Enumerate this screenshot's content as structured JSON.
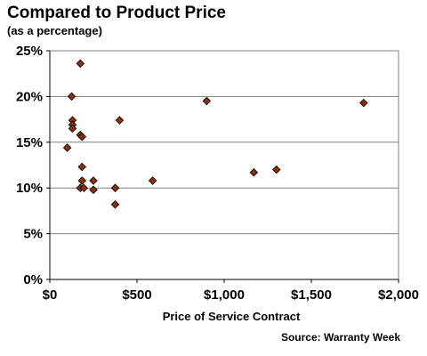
{
  "chart_data": {
    "type": "scatter",
    "title": "Compared to Product Price",
    "subtitle": "(as a percentage)",
    "xlabel": "Price of Service Contract",
    "ylabel": "",
    "source": "Source: Warranty Week",
    "xlim": [
      0,
      2000
    ],
    "ylim": [
      0,
      25
    ],
    "x_ticks": [
      0,
      500,
      1000,
      1500,
      2000
    ],
    "x_tick_labels": [
      "$0",
      "$500",
      "$1,000",
      "$1,500",
      "$2,000"
    ],
    "y_ticks": [
      0,
      5,
      10,
      15,
      20,
      25
    ],
    "y_tick_labels": [
      "0%",
      "5%",
      "10%",
      "15%",
      "20%",
      "25%"
    ],
    "grid": "horizontal",
    "marker_color": "#8B2E0A",
    "points": [
      {
        "x": 100,
        "y": 14.4
      },
      {
        "x": 125,
        "y": 20.0
      },
      {
        "x": 130,
        "y": 17.4
      },
      {
        "x": 130,
        "y": 16.9
      },
      {
        "x": 130,
        "y": 16.5
      },
      {
        "x": 175,
        "y": 23.6
      },
      {
        "x": 175,
        "y": 15.8
      },
      {
        "x": 185,
        "y": 15.6
      },
      {
        "x": 185,
        "y": 12.3
      },
      {
        "x": 175,
        "y": 10.0
      },
      {
        "x": 185,
        "y": 10.8
      },
      {
        "x": 195,
        "y": 10.0
      },
      {
        "x": 250,
        "y": 10.8
      },
      {
        "x": 250,
        "y": 9.8
      },
      {
        "x": 375,
        "y": 10.0
      },
      {
        "x": 375,
        "y": 8.2
      },
      {
        "x": 400,
        "y": 17.4
      },
      {
        "x": 590,
        "y": 10.8
      },
      {
        "x": 900,
        "y": 19.5
      },
      {
        "x": 1170,
        "y": 11.7
      },
      {
        "x": 1300,
        "y": 12.0
      },
      {
        "x": 1800,
        "y": 19.3
      }
    ]
  }
}
